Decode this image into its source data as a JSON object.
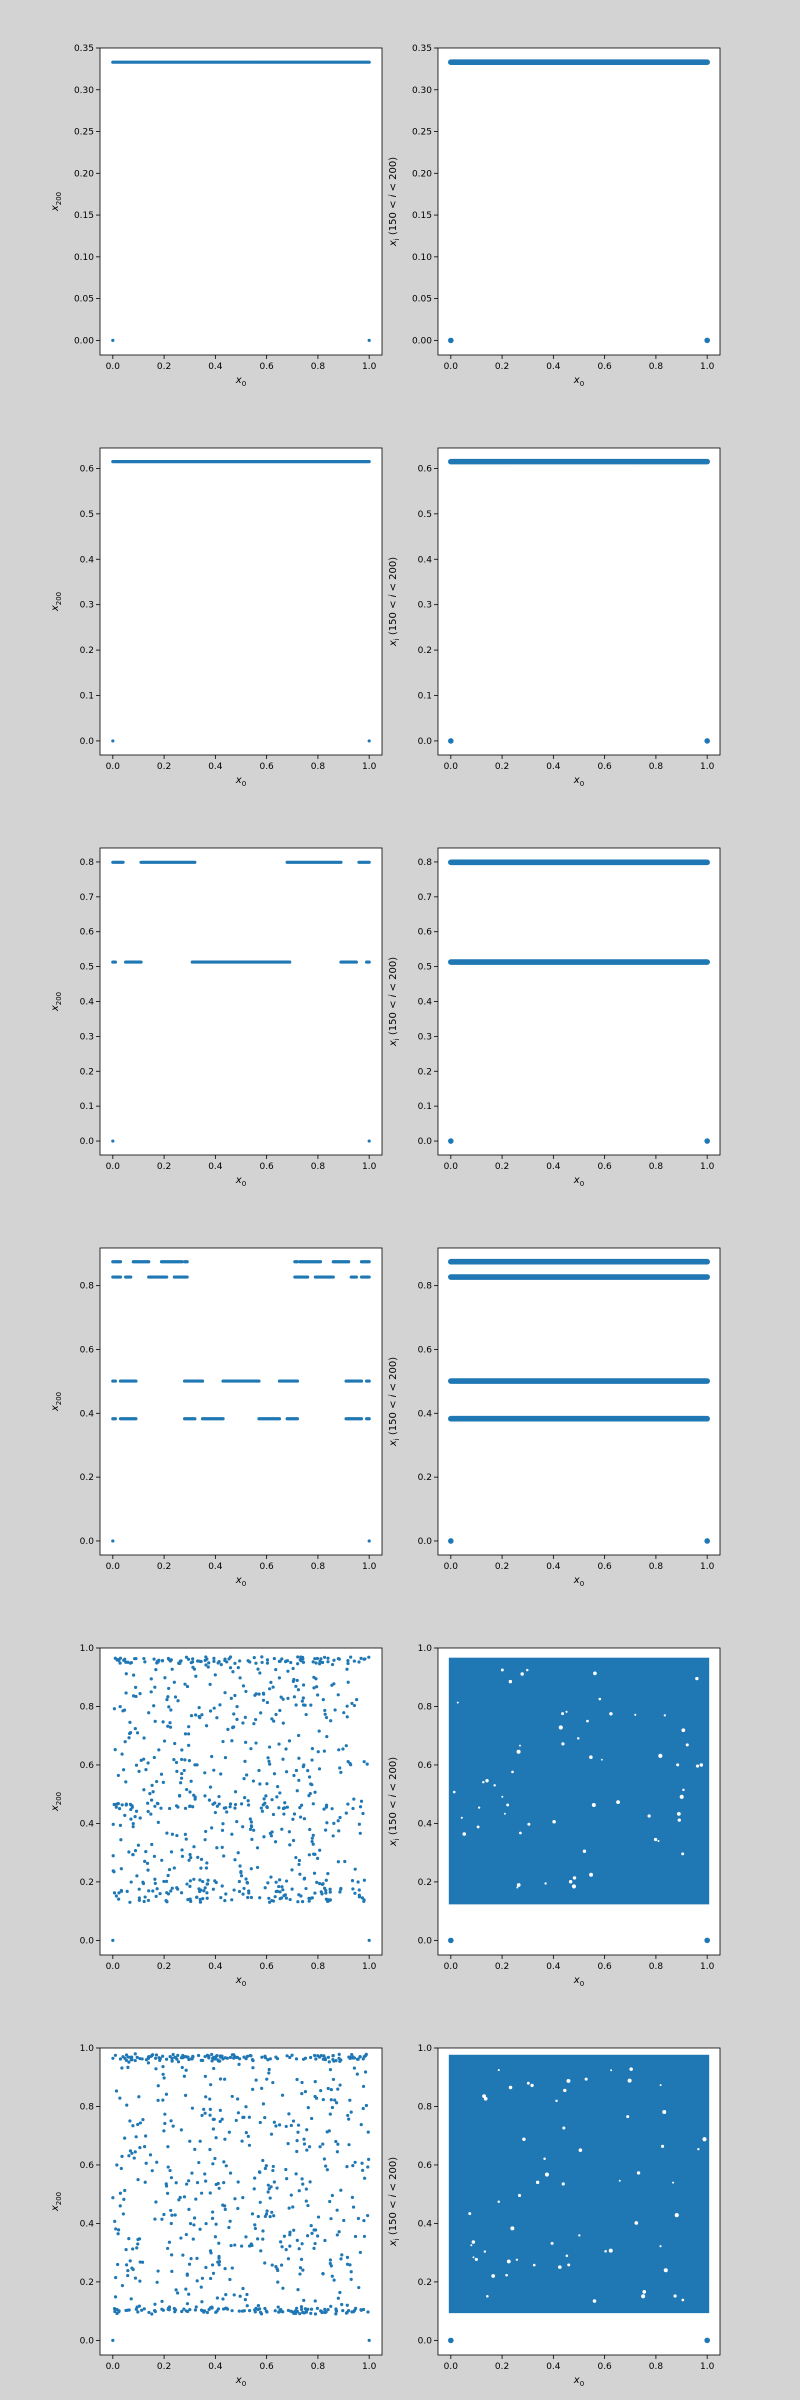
{
  "figure": {
    "background": "#d3d3d3",
    "panel_background": "#ffffff",
    "marker_color": "#1f77b4"
  },
  "axis_labels": {
    "x": "x0",
    "y_left": "x200",
    "y_right": "x_i (150 < i < 200)"
  },
  "chart_data": [
    {
      "type": "scatter",
      "row": 1,
      "col": "left",
      "xlabel": "x0",
      "ylabel": "x200",
      "xlim": [
        -0.05,
        1.05
      ],
      "ylim": [
        -0.0175,
        0.35
      ],
      "xticks": [
        0.0,
        0.2,
        0.4,
        0.6,
        0.8,
        1.0
      ],
      "yticks": [
        0.0,
        0.05,
        0.1,
        0.15,
        0.2,
        0.25,
        0.3,
        0.35
      ],
      "y_tick_decimals": 2,
      "bands": [
        {
          "y": 0.333,
          "ranges": [
            [
              0.0,
              1.0
            ]
          ]
        }
      ],
      "points": [
        [
          0.0,
          0.0
        ],
        [
          1.0,
          0.0
        ]
      ],
      "scatter": [],
      "marker_r": 1.6
    },
    {
      "type": "scatter",
      "row": 1,
      "col": "right",
      "xlabel": "x0",
      "ylabel": "x_i (150 < i < 200)",
      "xlim": [
        -0.05,
        1.05
      ],
      "ylim": [
        -0.0175,
        0.35
      ],
      "xticks": [
        0.0,
        0.2,
        0.4,
        0.6,
        0.8,
        1.0
      ],
      "yticks": [
        0.0,
        0.05,
        0.1,
        0.15,
        0.2,
        0.25,
        0.3,
        0.35
      ],
      "y_tick_decimals": 2,
      "bands": [
        {
          "y": 0.333,
          "ranges": [
            [
              0.0,
              1.0
            ]
          ]
        }
      ],
      "points": [
        [
          0.0,
          0.0
        ],
        [
          1.0,
          0.0
        ]
      ],
      "scatter": [],
      "marker_r": 2.8
    },
    {
      "type": "scatter",
      "row": 2,
      "col": "left",
      "xlabel": "x0",
      "ylabel": "x200",
      "xlim": [
        -0.05,
        1.05
      ],
      "ylim": [
        -0.031,
        0.645
      ],
      "xticks": [
        0.0,
        0.2,
        0.4,
        0.6,
        0.8,
        1.0
      ],
      "yticks": [
        0.0,
        0.1,
        0.2,
        0.3,
        0.4,
        0.5,
        0.6
      ],
      "y_tick_decimals": 1,
      "bands": [
        {
          "y": 0.615,
          "ranges": [
            [
              0.0,
              1.0
            ]
          ]
        }
      ],
      "points": [
        [
          0.0,
          0.0
        ],
        [
          1.0,
          0.0
        ]
      ],
      "scatter": [],
      "marker_r": 1.6
    },
    {
      "type": "scatter",
      "row": 2,
      "col": "right",
      "xlabel": "x0",
      "ylabel": "x_i (150 < i < 200)",
      "xlim": [
        -0.05,
        1.05
      ],
      "ylim": [
        -0.031,
        0.645
      ],
      "xticks": [
        0.0,
        0.2,
        0.4,
        0.6,
        0.8,
        1.0
      ],
      "yticks": [
        0.0,
        0.1,
        0.2,
        0.3,
        0.4,
        0.5,
        0.6
      ],
      "y_tick_decimals": 1,
      "bands": [
        {
          "y": 0.615,
          "ranges": [
            [
              0.0,
              1.0
            ]
          ]
        }
      ],
      "points": [
        [
          0.0,
          0.0
        ],
        [
          1.0,
          0.0
        ]
      ],
      "scatter": [],
      "marker_r": 2.8
    },
    {
      "type": "scatter",
      "row": 3,
      "col": "left",
      "xlabel": "x0",
      "ylabel": "x200",
      "xlim": [
        -0.05,
        1.05
      ],
      "ylim": [
        -0.04,
        0.84
      ],
      "xticks": [
        0.0,
        0.2,
        0.4,
        0.6,
        0.8,
        1.0
      ],
      "yticks": [
        0.0,
        0.1,
        0.2,
        0.3,
        0.4,
        0.5,
        0.6,
        0.7,
        0.8
      ],
      "y_tick_decimals": 1,
      "bands": [
        {
          "y": 0.799,
          "ranges": [
            [
              0.0,
              0.04
            ],
            [
              0.11,
              0.32
            ],
            [
              0.68,
              0.89
            ],
            [
              0.96,
              1.0
            ]
          ]
        },
        {
          "y": 0.513,
          "ranges": [
            [
              0.0,
              0.01
            ],
            [
              0.05,
              0.11
            ],
            [
              0.31,
              0.69
            ],
            [
              0.89,
              0.95
            ],
            [
              0.99,
              1.0
            ]
          ]
        }
      ],
      "points": [
        [
          0.0,
          0.0
        ],
        [
          1.0,
          0.0
        ]
      ],
      "scatter": [],
      "marker_r": 1.6
    },
    {
      "type": "scatter",
      "row": 3,
      "col": "right",
      "xlabel": "x0",
      "ylabel": "x_i (150 < i < 200)",
      "xlim": [
        -0.05,
        1.05
      ],
      "ylim": [
        -0.04,
        0.84
      ],
      "xticks": [
        0.0,
        0.2,
        0.4,
        0.6,
        0.8,
        1.0
      ],
      "yticks": [
        0.0,
        0.1,
        0.2,
        0.3,
        0.4,
        0.5,
        0.6,
        0.7,
        0.8
      ],
      "y_tick_decimals": 1,
      "bands": [
        {
          "y": 0.799,
          "ranges": [
            [
              0.0,
              1.0
            ]
          ]
        },
        {
          "y": 0.513,
          "ranges": [
            [
              0.0,
              1.0
            ]
          ]
        }
      ],
      "points": [
        [
          0.0,
          0.0
        ],
        [
          1.0,
          0.0
        ]
      ],
      "scatter": [],
      "marker_r": 2.8
    },
    {
      "type": "scatter",
      "row": 4,
      "col": "left",
      "xlabel": "x0",
      "ylabel": "x200",
      "xlim": [
        -0.05,
        1.05
      ],
      "ylim": [
        -0.044,
        0.918
      ],
      "xticks": [
        0.0,
        0.2,
        0.4,
        0.6,
        0.8,
        1.0
      ],
      "yticks": [
        0.0,
        0.2,
        0.4,
        0.6,
        0.8
      ],
      "y_tick_decimals": 1,
      "bands": [
        {
          "y": 0.875,
          "ranges": [
            [
              0.0,
              0.03
            ],
            [
              0.08,
              0.14
            ],
            [
              0.19,
              0.27
            ],
            [
              0.28,
              0.29
            ],
            [
              0.71,
              0.72
            ],
            [
              0.73,
              0.81
            ],
            [
              0.86,
              0.92
            ],
            [
              0.97,
              1.0
            ]
          ]
        },
        {
          "y": 0.827,
          "ranges": [
            [
              0.0,
              0.03
            ],
            [
              0.05,
              0.07
            ],
            [
              0.14,
              0.21
            ],
            [
              0.24,
              0.29
            ],
            [
              0.71,
              0.76
            ],
            [
              0.79,
              0.86
            ],
            [
              0.93,
              0.95
            ],
            [
              0.97,
              1.0
            ]
          ]
        },
        {
          "y": 0.501,
          "ranges": [
            [
              0.0,
              0.01
            ],
            [
              0.03,
              0.09
            ],
            [
              0.28,
              0.35
            ],
            [
              0.43,
              0.57
            ],
            [
              0.65,
              0.72
            ],
            [
              0.91,
              0.97
            ],
            [
              0.99,
              1.0
            ]
          ]
        },
        {
          "y": 0.383,
          "ranges": [
            [
              0.0,
              0.01
            ],
            [
              0.03,
              0.09
            ],
            [
              0.28,
              0.32
            ],
            [
              0.35,
              0.43
            ],
            [
              0.57,
              0.65
            ],
            [
              0.68,
              0.72
            ],
            [
              0.91,
              0.97
            ],
            [
              0.99,
              1.0
            ]
          ]
        }
      ],
      "points": [
        [
          0.0,
          0.0
        ],
        [
          1.0,
          0.0
        ]
      ],
      "scatter": [],
      "marker_r": 1.6
    },
    {
      "type": "scatter",
      "row": 4,
      "col": "right",
      "xlabel": "x0",
      "ylabel": "x_i (150 < i < 200)",
      "xlim": [
        -0.05,
        1.05
      ],
      "ylim": [
        -0.044,
        0.918
      ],
      "xticks": [
        0.0,
        0.2,
        0.4,
        0.6,
        0.8,
        1.0
      ],
      "yticks": [
        0.0,
        0.2,
        0.4,
        0.6,
        0.8
      ],
      "y_tick_decimals": 1,
      "bands": [
        {
          "y": 0.875,
          "ranges": [
            [
              0.0,
              1.0
            ]
          ]
        },
        {
          "y": 0.827,
          "ranges": [
            [
              0.0,
              1.0
            ]
          ]
        },
        {
          "y": 0.501,
          "ranges": [
            [
              0.0,
              1.0
            ]
          ]
        },
        {
          "y": 0.383,
          "ranges": [
            [
              0.0,
              1.0
            ]
          ]
        }
      ],
      "points": [
        [
          0.0,
          0.0
        ],
        [
          1.0,
          0.0
        ]
      ],
      "scatter": [],
      "marker_r": 2.8
    },
    {
      "type": "scatter",
      "row": 5,
      "col": "left",
      "xlabel": "x0",
      "ylabel": "x200",
      "xlim": [
        -0.05,
        1.05
      ],
      "ylim": [
        -0.05,
        1.0
      ],
      "xticks": [
        0.0,
        0.2,
        0.4,
        0.6,
        0.8,
        1.0
      ],
      "yticks": [
        0.0,
        0.2,
        0.4,
        0.6,
        0.8,
        1.0
      ],
      "y_tick_decimals": 1,
      "bands": [],
      "points": [
        [
          0.0,
          0.0
        ],
        [
          1.0,
          0.0
        ]
      ],
      "scatter": {
        "n": 1000,
        "ymin": 0.13,
        "ymax": 0.96,
        "density": "sparse",
        "dense_lines": [
          0.96,
          0.955,
          0.14,
          0.17,
          0.46,
          0.2
        ]
      },
      "marker_r": 1.6
    },
    {
      "type": "scatter",
      "row": 5,
      "col": "right",
      "xlabel": "x0",
      "ylabel": "x_i (150 < i < 200)",
      "xlim": [
        -0.05,
        1.05
      ],
      "ylim": [
        -0.05,
        1.0
      ],
      "xticks": [
        0.0,
        0.2,
        0.4,
        0.6,
        0.8,
        1.0
      ],
      "yticks": [
        0.0,
        0.2,
        0.4,
        0.6,
        0.8,
        1.0
      ],
      "y_tick_decimals": 1,
      "bands": [],
      "points": [
        [
          0.0,
          0.0
        ],
        [
          1.0,
          0.0
        ]
      ],
      "scatter": {
        "n": 50000,
        "ymin": 0.13,
        "ymax": 0.96,
        "density": "filled"
      },
      "marker_r": 2.8
    },
    {
      "type": "scatter",
      "row": 6,
      "col": "left",
      "xlabel": "x0",
      "ylabel": "x200",
      "xlim": [
        -0.05,
        1.05
      ],
      "ylim": [
        -0.05,
        1.0
      ],
      "xticks": [
        0.0,
        0.2,
        0.4,
        0.6,
        0.8,
        1.0
      ],
      "yticks": [
        0.0,
        0.2,
        0.4,
        0.6,
        0.8,
        1.0
      ],
      "y_tick_decimals": 1,
      "bands": [],
      "points": [
        [
          0.0,
          0.0
        ],
        [
          1.0,
          0.0
        ]
      ],
      "scatter": {
        "n": 1000,
        "ymin": 0.1,
        "ymax": 0.97,
        "density": "sparse",
        "dense_lines": [
          0.97,
          0.965,
          0.1,
          0.105
        ]
      },
      "marker_r": 1.6
    },
    {
      "type": "scatter",
      "row": 6,
      "col": "right",
      "xlabel": "x0",
      "ylabel": "x_i (150 < i < 200)",
      "xlim": [
        -0.05,
        1.05
      ],
      "ylim": [
        -0.05,
        1.0
      ],
      "xticks": [
        0.0,
        0.2,
        0.4,
        0.6,
        0.8,
        1.0
      ],
      "yticks": [
        0.0,
        0.2,
        0.4,
        0.6,
        0.8,
        1.0
      ],
      "y_tick_decimals": 1,
      "bands": [],
      "points": [
        [
          0.0,
          0.0
        ],
        [
          1.0,
          0.0
        ]
      ],
      "scatter": {
        "n": 50000,
        "ymin": 0.1,
        "ymax": 0.97,
        "density": "filled"
      },
      "marker_r": 2.8
    }
  ]
}
